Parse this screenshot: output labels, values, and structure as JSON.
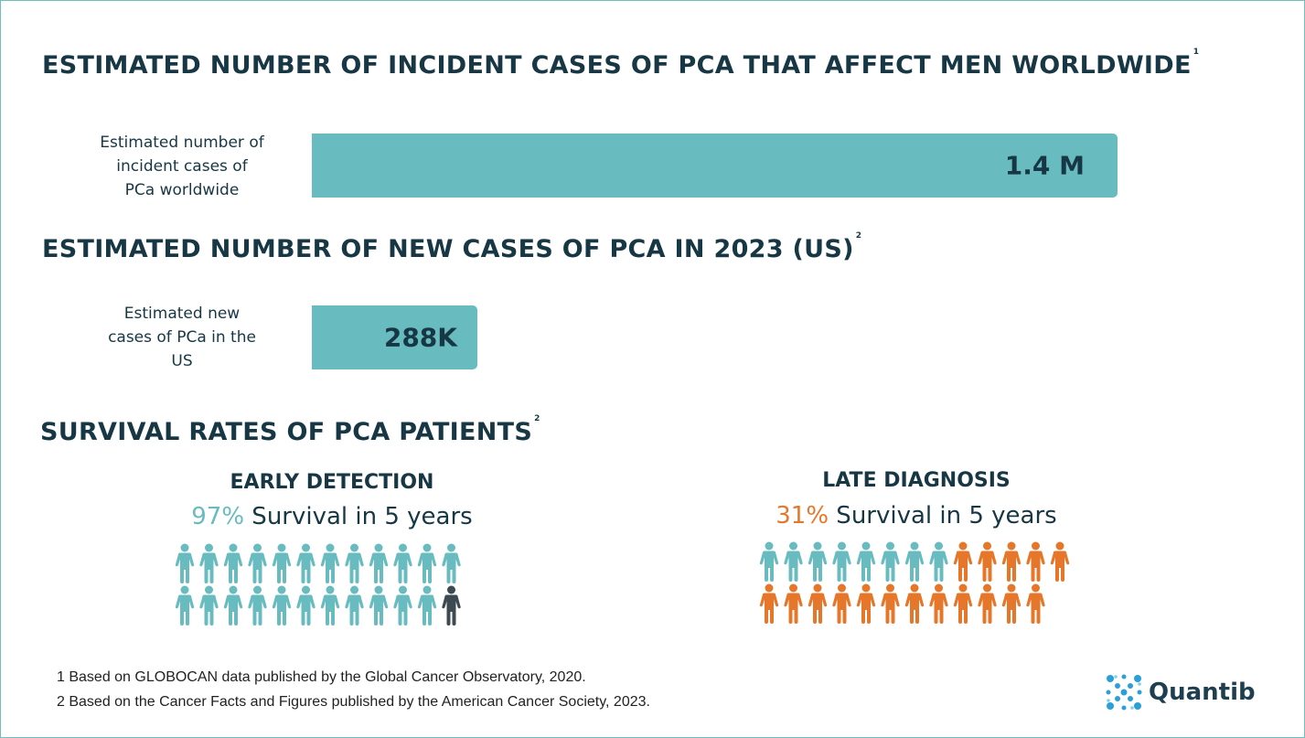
{
  "headings": {
    "h1": "ESTIMATED NUMBER OF INCIDENT CASES OF PCA THAT AFFECT MEN WORLDWIDE",
    "h1_sup": "1",
    "h2": "ESTIMATED NUMBER OF NEW CASES OF PCA IN 2023 (US)",
    "h2_sup": "2",
    "h3": "SURVIVAL RATES OF PCA PATIENTS",
    "h3_sup": "2"
  },
  "chart_data": [
    {
      "type": "bar",
      "categories": [
        "Estimated number of incident cases of PCa worldwide",
        "Estimated new cases of PCa in the US"
      ],
      "values": [
        1400000,
        288000
      ],
      "value_labels": [
        "1.4 M",
        "288K"
      ],
      "label_lines": [
        [
          "Estimated number of",
          "incident cases of",
          "PCa worldwide"
        ],
        [
          "Estimated new",
          "cases of PCa in the",
          "US"
        ]
      ],
      "color": "#68bcbf"
    },
    {
      "type": "pictograph",
      "groups": [
        {
          "title": "EARLY DETECTION",
          "pct_label": "97%",
          "rest": " Survival in 5 years",
          "survival_fraction": 0.97,
          "rows": [
            12,
            12
          ],
          "highlight_color": "#68bcbf",
          "other_color": "#3d4a52",
          "pct_color": "#68bcbf",
          "highlight_count": 23
        },
        {
          "title": "LATE DIAGNOSIS",
          "pct_label": "31%",
          "rest": " Survival in 5 years",
          "survival_fraction": 0.31,
          "rows": [
            13,
            12
          ],
          "highlight_color": "#68bcbf",
          "other_color": "#e6772a",
          "pct_color": "#e6772a",
          "highlight_count": 8
        }
      ]
    }
  ],
  "footnotes": [
    "1 Based on GLOBOCAN data published by the Global Cancer Observatory, 2020.",
    "2 Based on the Cancer Facts and Figures published by the American Cancer Society, 2023."
  ],
  "logo": {
    "text": "Quantib",
    "color": "#2b9fd8"
  }
}
